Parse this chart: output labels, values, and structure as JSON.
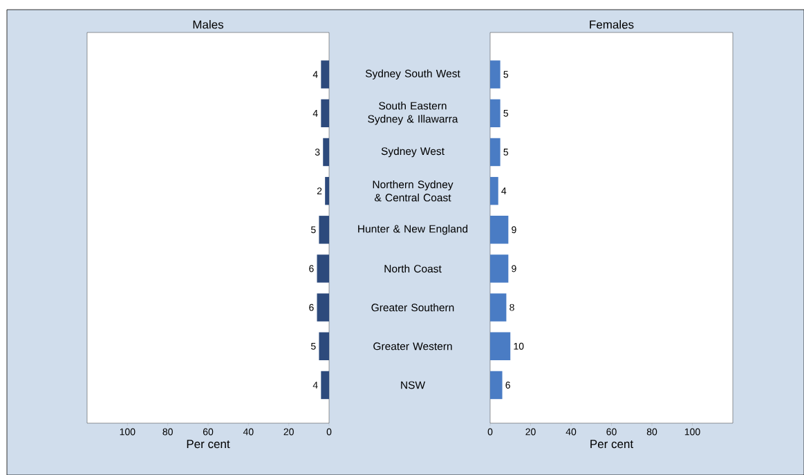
{
  "chart_data": [
    {
      "type": "bar",
      "orientation": "horizontal",
      "title": "Males",
      "xlabel": "Per cent",
      "categories": [
        "Sydney South West",
        "South Eastern Sydney & Illawarra",
        "Sydney West",
        "Northern Sydney & Central Coast",
        "Hunter & New England",
        "North Coast",
        "Greater Southern",
        "Greater Western",
        "NSW"
      ],
      "values": [
        4,
        4,
        3,
        2,
        5,
        6,
        6,
        5,
        4
      ],
      "color": "#2d4a7c",
      "xlim": [
        120,
        0
      ],
      "xticks": [
        100,
        80,
        60,
        40,
        20,
        0
      ],
      "data_labels": true
    },
    {
      "type": "bar",
      "orientation": "horizontal",
      "title": "Females",
      "xlabel": "Per cent",
      "values": [
        5,
        5,
        5,
        4,
        9,
        9,
        8,
        10,
        6
      ],
      "color": "#4a7cc4",
      "xlim": [
        0,
        120
      ],
      "xticks": [
        0,
        20,
        40,
        60,
        80,
        100
      ],
      "data_labels": true,
      "tick_labels": "x"
    }
  ]
}
